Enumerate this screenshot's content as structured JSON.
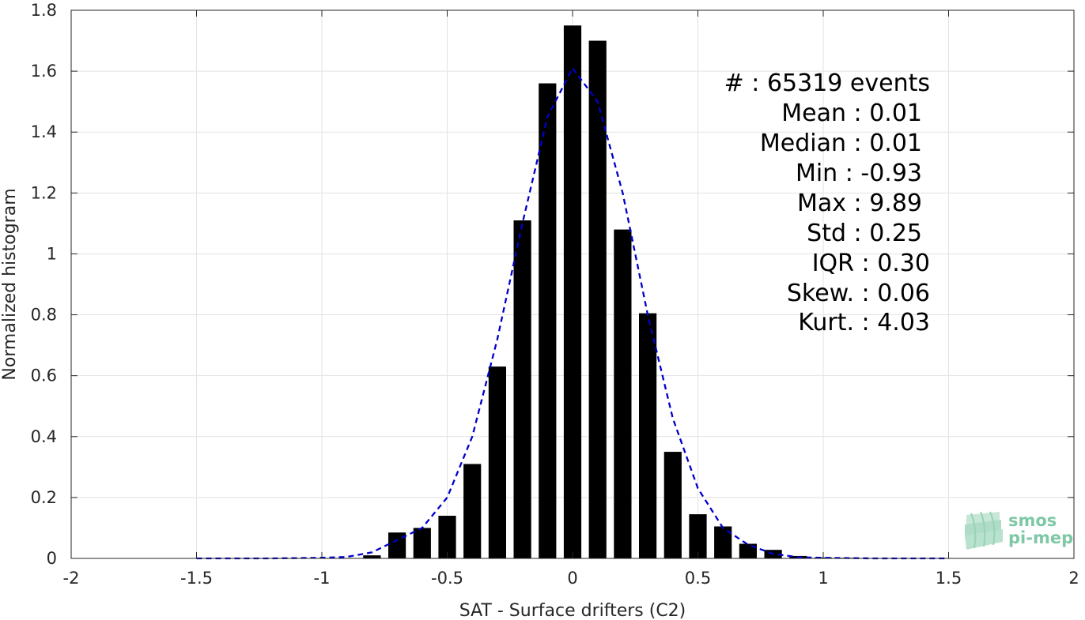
{
  "chart_data": {
    "type": "bar",
    "title": "",
    "xlabel": "SAT - Surface drifters (C2)",
    "ylabel": "Normalized histogram",
    "xlim": [
      -2,
      2
    ],
    "ylim": [
      0,
      1.8
    ],
    "xticks": [
      -2,
      -1.5,
      -1,
      -0.5,
      0,
      0.5,
      1,
      1.5,
      2
    ],
    "xtick_labels": [
      "-2",
      "-1.5",
      "-1",
      "-0.5",
      "0",
      "0.5",
      "1",
      "1.5",
      "2"
    ],
    "yticks": [
      0,
      0.2,
      0.4,
      0.6,
      0.8,
      1,
      1.2,
      1.4,
      1.6,
      1.8
    ],
    "ytick_labels": [
      "0",
      "0.2",
      "0.4",
      "0.6",
      "0.8",
      "1",
      "1.2",
      "1.4",
      "1.6",
      "1.8"
    ],
    "grid": true,
    "bar_width": 0.07,
    "bars": {
      "x": [
        -0.8,
        -0.7,
        -0.6,
        -0.5,
        -0.4,
        -0.3,
        -0.2,
        -0.1,
        0.0,
        0.1,
        0.2,
        0.3,
        0.4,
        0.5,
        0.6,
        0.7,
        0.8,
        0.9,
        1.0,
        1.1,
        1.2,
        1.3,
        1.4,
        1.5
      ],
      "values": [
        0.01,
        0.085,
        0.1,
        0.14,
        0.31,
        0.63,
        1.11,
        1.56,
        1.75,
        1.7,
        1.08,
        0.805,
        0.35,
        0.145,
        0.105,
        0.048,
        0.028,
        0.008,
        0.003,
        0.002,
        0.001,
        0.001,
        0.001,
        0.001
      ],
      "color": "#000000"
    },
    "fit_curve": {
      "style": "dashed",
      "color": "#0000cc",
      "x": [
        -1.5,
        -1.2,
        -1.0,
        -0.9,
        -0.8,
        -0.7,
        -0.6,
        -0.5,
        -0.4,
        -0.3,
        -0.2,
        -0.1,
        0.0,
        0.1,
        0.2,
        0.3,
        0.4,
        0.5,
        0.6,
        0.7,
        0.8,
        0.9,
        1.0,
        1.2,
        1.5
      ],
      "y": [
        0.0,
        0.0,
        0.002,
        0.005,
        0.02,
        0.06,
        0.1,
        0.2,
        0.4,
        0.72,
        1.1,
        1.45,
        1.61,
        1.5,
        1.2,
        0.8,
        0.46,
        0.23,
        0.1,
        0.045,
        0.015,
        0.004,
        0.002,
        0.0,
        0.0
      ]
    },
    "annotations": [
      "#  : 65319 events",
      "Mean : 0.01",
      "Median : 0.01",
      "Min : -0.93",
      "Max : 9.89",
      "Std : 0.25",
      "IQR : 0.30",
      "Skew. : 0.06",
      "Kurt. : 4.03"
    ]
  },
  "logo": {
    "line1": "smos",
    "line2": "pi-mep",
    "color": "#7fc8a6"
  }
}
